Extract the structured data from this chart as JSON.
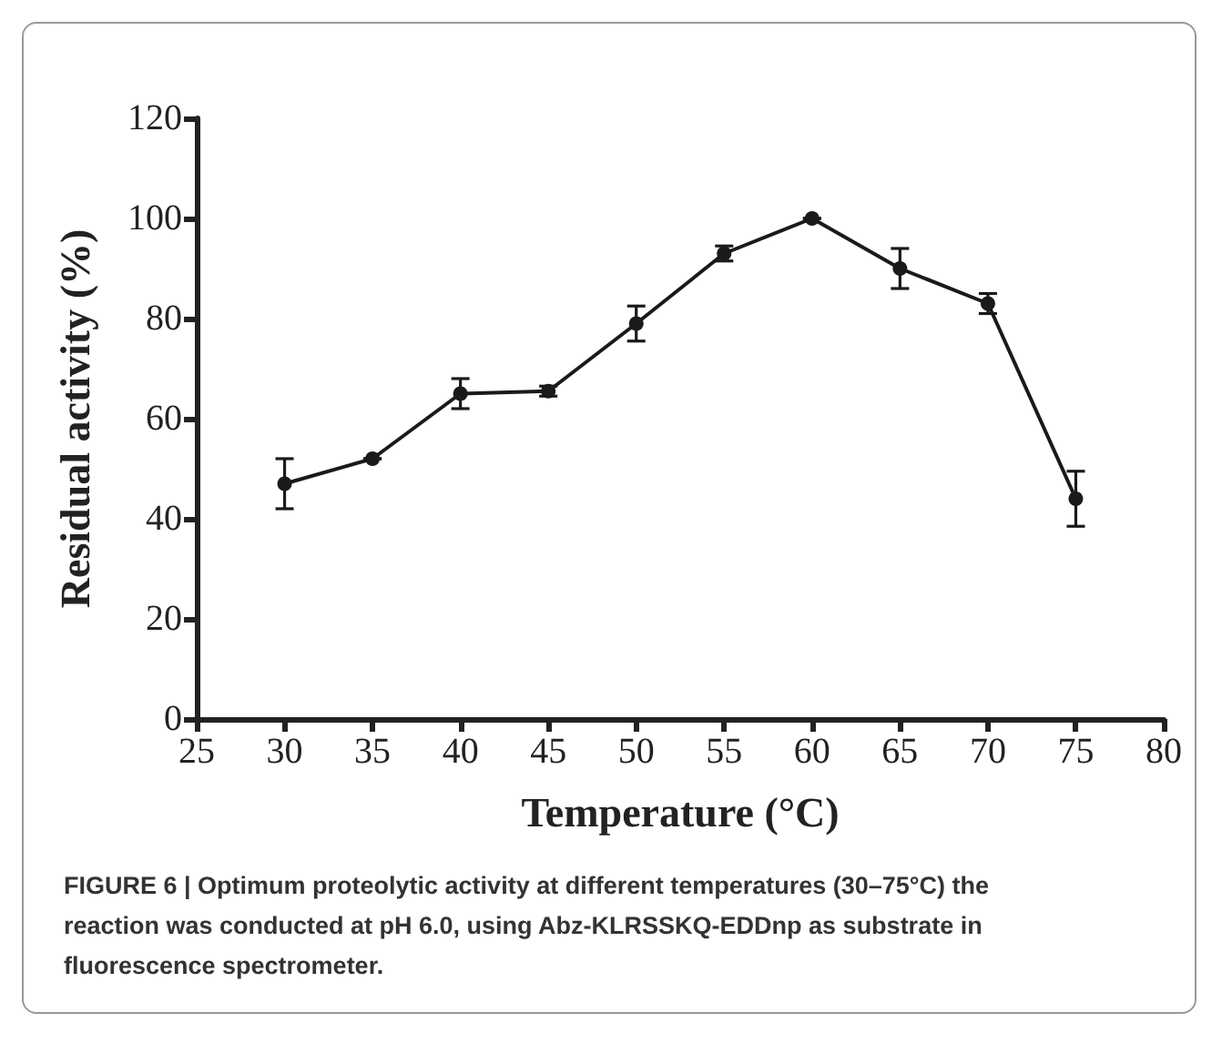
{
  "chart_data": {
    "type": "line",
    "xlabel": "Temperature (°C)",
    "ylabel": "Residual activity (%)",
    "annotations": [
      "FIGURE 6 | Optimum proteolytic activity at different temperatures (30–75°C) the reaction was conducted at pH 6.0, using Abz-KLRSSKQ-EDDnp as substrate in fluorescence spectrometer."
    ],
    "x": [
      30,
      35,
      40,
      45,
      50,
      55,
      60,
      65,
      70,
      75
    ],
    "series": [
      {
        "color": "#1a1a1a",
        "values": [
          47,
          52,
          65,
          65.5,
          79,
          93,
          100,
          90,
          83,
          44
        ],
        "errors": [
          5,
          0,
          3,
          1,
          3.5,
          1.5,
          0,
          4,
          2,
          5.5
        ]
      }
    ],
    "xlim": [
      25,
      80
    ],
    "xticks": [
      25,
      30,
      35,
      40,
      45,
      50,
      55,
      60,
      65,
      70,
      75,
      80
    ],
    "ylim": [
      0,
      120
    ],
    "yticks": [
      0,
      20,
      40,
      60,
      80,
      100,
      120
    ],
    "grid": false,
    "marker": "circle",
    "line_style": "solid"
  }
}
